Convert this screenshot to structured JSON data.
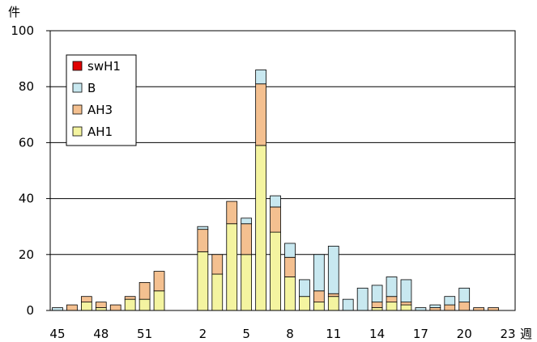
{
  "chart_data": {
    "type": "bar",
    "stacked": true,
    "title": "",
    "xlabel": "週",
    "ylabel": "件",
    "ylim": [
      0,
      100
    ],
    "yticks": [
      0,
      20,
      40,
      60,
      80,
      100
    ],
    "grid": true,
    "legend_position": "top-left",
    "categories": [
      "45",
      "46",
      "47",
      "48",
      "49",
      "50",
      "51",
      "52",
      "53",
      "1",
      "2",
      "3",
      "4",
      "5",
      "6",
      "7",
      "8",
      "9",
      "10",
      "11",
      "12",
      "13",
      "14",
      "15",
      "16",
      "17",
      "18",
      "19",
      "20",
      "21",
      "22",
      "23"
    ],
    "x_tick_labels": [
      "45",
      "48",
      "51",
      "2",
      "5",
      "8",
      "11",
      "14",
      "17",
      "20",
      "23"
    ],
    "series": [
      {
        "name": "AH1",
        "color": "#f4f4a0",
        "values": [
          0,
          0,
          3,
          1,
          0,
          4,
          4,
          7,
          0,
          0,
          21,
          13,
          31,
          20,
          59,
          28,
          12,
          5,
          3,
          5,
          0,
          0,
          1,
          3,
          2,
          0,
          0,
          0,
          0,
          0,
          0,
          0
        ]
      },
      {
        "name": "AH3",
        "color": "#f4c090",
        "values": [
          0,
          2,
          2,
          2,
          2,
          1,
          6,
          7,
          0,
          0,
          8,
          7,
          8,
          11,
          22,
          9,
          7,
          0,
          4,
          1,
          0,
          0,
          2,
          2,
          1,
          0,
          1,
          2,
          3,
          1,
          1,
          0
        ]
      },
      {
        "name": "B",
        "color": "#c8e8f0",
        "values": [
          1,
          0,
          0,
          0,
          0,
          0,
          0,
          0,
          0,
          0,
          1,
          0,
          0,
          2,
          5,
          4,
          5,
          6,
          13,
          17,
          4,
          8,
          6,
          7,
          8,
          1,
          1,
          3,
          5,
          0,
          0,
          0
        ]
      },
      {
        "name": "swH1",
        "color": "#e00000",
        "values": [
          0,
          0,
          0,
          0,
          0,
          0,
          0,
          0,
          0,
          0,
          0,
          0,
          0,
          0,
          0,
          0,
          0,
          0,
          0,
          0,
          0,
          0,
          0,
          0,
          0,
          0,
          0,
          0,
          0,
          0,
          0,
          0
        ]
      }
    ]
  }
}
